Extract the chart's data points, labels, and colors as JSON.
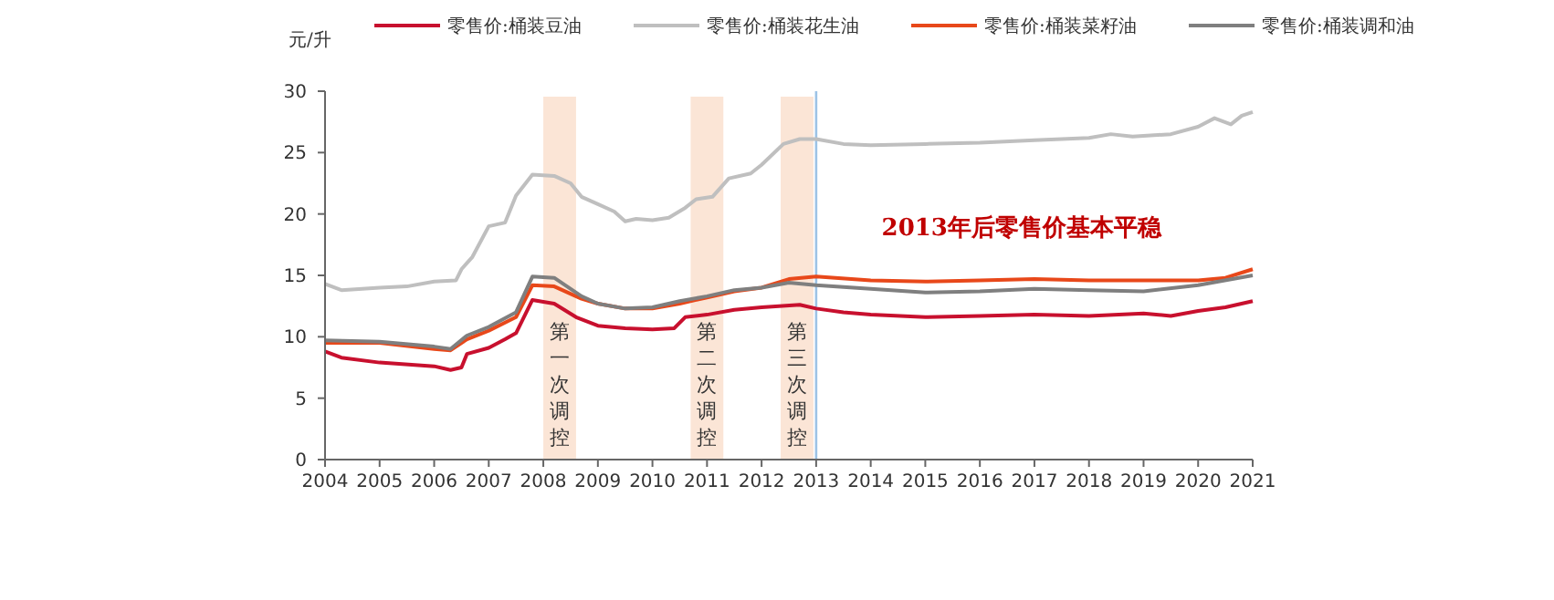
{
  "chart_data": {
    "type": "line",
    "ylabel": "元/升",
    "legend": "top",
    "grid": false,
    "line_style": "solid",
    "marker": "none",
    "xlim": [
      2004,
      2021
    ],
    "xticks": [
      2004,
      2005,
      2006,
      2007,
      2008,
      2009,
      2010,
      2011,
      2012,
      2013,
      2014,
      2015,
      2016,
      2017,
      2018,
      2019,
      2020,
      2021
    ],
    "ylim": [
      0,
      30
    ],
    "yticks": [
      0,
      5,
      10,
      15,
      20,
      25,
      30
    ],
    "series": [
      {
        "name": "零售价:桶装豆油",
        "color": "#c8102e",
        "x": [
          2004,
          2004.3,
          2005,
          2006,
          2006.3,
          2006.5,
          2006.6,
          2007,
          2007.3,
          2007.5,
          2007.8,
          2008.2,
          2008.6,
          2009,
          2009.5,
          2010,
          2010.4,
          2010.6,
          2011,
          2011.5,
          2012,
          2012.7,
          2013,
          2013.5,
          2014,
          2015,
          2016,
          2017,
          2018,
          2019,
          2019.5,
          2020,
          2020.5,
          2021
        ],
        "values": [
          8.8,
          8.3,
          7.9,
          7.6,
          7.3,
          7.5,
          8.6,
          9.1,
          9.8,
          10.3,
          13.0,
          12.7,
          11.6,
          10.9,
          10.7,
          10.6,
          10.7,
          11.6,
          11.8,
          12.2,
          12.4,
          12.6,
          12.3,
          12.0,
          11.8,
          11.6,
          11.7,
          11.8,
          11.7,
          11.9,
          11.7,
          12.1,
          12.4,
          12.9
        ]
      },
      {
        "name": "零售价:桶装花生油",
        "color": "#bfbfbf",
        "x": [
          2004,
          2004.3,
          2005,
          2005.5,
          2006,
          2006.4,
          2006.5,
          2006.7,
          2007,
          2007.3,
          2007.5,
          2007.8,
          2008.2,
          2008.5,
          2008.7,
          2009,
          2009.3,
          2009.5,
          2009.7,
          2010,
          2010.3,
          2010.6,
          2010.8,
          2011.1,
          2011.4,
          2011.8,
          2012,
          2012.4,
          2012.7,
          2013,
          2013.5,
          2014,
          2015,
          2016,
          2017,
          2018,
          2018.4,
          2018.8,
          2019.5,
          2020,
          2020.3,
          2020.6,
          2020.8,
          2021
        ],
        "values": [
          14.3,
          13.8,
          14.0,
          14.1,
          14.5,
          14.6,
          15.5,
          16.5,
          19.0,
          19.3,
          21.5,
          23.2,
          23.1,
          22.5,
          21.4,
          20.8,
          20.2,
          19.4,
          19.6,
          19.5,
          19.7,
          20.5,
          21.2,
          21.4,
          22.9,
          23.3,
          24.0,
          25.7,
          26.1,
          26.1,
          25.7,
          25.6,
          25.7,
          25.8,
          26.0,
          26.2,
          26.5,
          26.3,
          26.5,
          27.1,
          27.8,
          27.3,
          28.0,
          28.3
        ]
      },
      {
        "name": "零售价:桶装菜籽油",
        "color": "#e8481a",
        "x": [
          2004,
          2005,
          2006,
          2006.3,
          2006.6,
          2007,
          2007.5,
          2007.8,
          2008.2,
          2008.7,
          2009,
          2009.5,
          2010,
          2010.5,
          2011,
          2011.5,
          2012,
          2012.5,
          2013,
          2014,
          2015,
          2016,
          2017,
          2018,
          2019,
          2020,
          2020.5,
          2021
        ],
        "values": [
          9.5,
          9.5,
          9.0,
          8.9,
          9.8,
          10.5,
          11.6,
          14.2,
          14.1,
          13.1,
          12.7,
          12.3,
          12.3,
          12.7,
          13.2,
          13.7,
          14.0,
          14.7,
          14.9,
          14.6,
          14.5,
          14.6,
          14.7,
          14.6,
          14.6,
          14.6,
          14.8,
          15.5
        ]
      },
      {
        "name": "零售价:桶装调和油",
        "color": "#7f7f7f",
        "x": [
          2004,
          2005,
          2006,
          2006.3,
          2006.6,
          2007,
          2007.5,
          2007.8,
          2008.2,
          2008.7,
          2009,
          2009.5,
          2010,
          2010.5,
          2011,
          2011.5,
          2012,
          2012.5,
          2013,
          2014,
          2015,
          2016,
          2017,
          2018,
          2019,
          2020,
          2021
        ],
        "values": [
          9.7,
          9.6,
          9.2,
          9.0,
          10.1,
          10.8,
          12.0,
          14.9,
          14.8,
          13.3,
          12.7,
          12.3,
          12.4,
          12.9,
          13.3,
          13.8,
          14.0,
          14.4,
          14.2,
          13.9,
          13.6,
          13.7,
          13.9,
          13.8,
          13.7,
          14.2,
          15.0
        ]
      }
    ],
    "bands": [
      {
        "axis": "x",
        "from": 2008,
        "to": 2008.6,
        "label": "第一次调控",
        "color": "#fbe5d6"
      },
      {
        "axis": "x",
        "from": 2010.7,
        "to": 2011.3,
        "label": "第二次调控",
        "color": "#fbe5d6"
      },
      {
        "axis": "x",
        "from": 2012.35,
        "to": 2012.95,
        "label": "第三次调控",
        "color": "#fbe5d6"
      }
    ],
    "ref_lines": [
      {
        "axis": "x",
        "value": 2013,
        "color": "#9dc3e6",
        "line_style": "solid"
      }
    ],
    "annotations": [
      "2013年后零售价基本平稳"
    ]
  }
}
